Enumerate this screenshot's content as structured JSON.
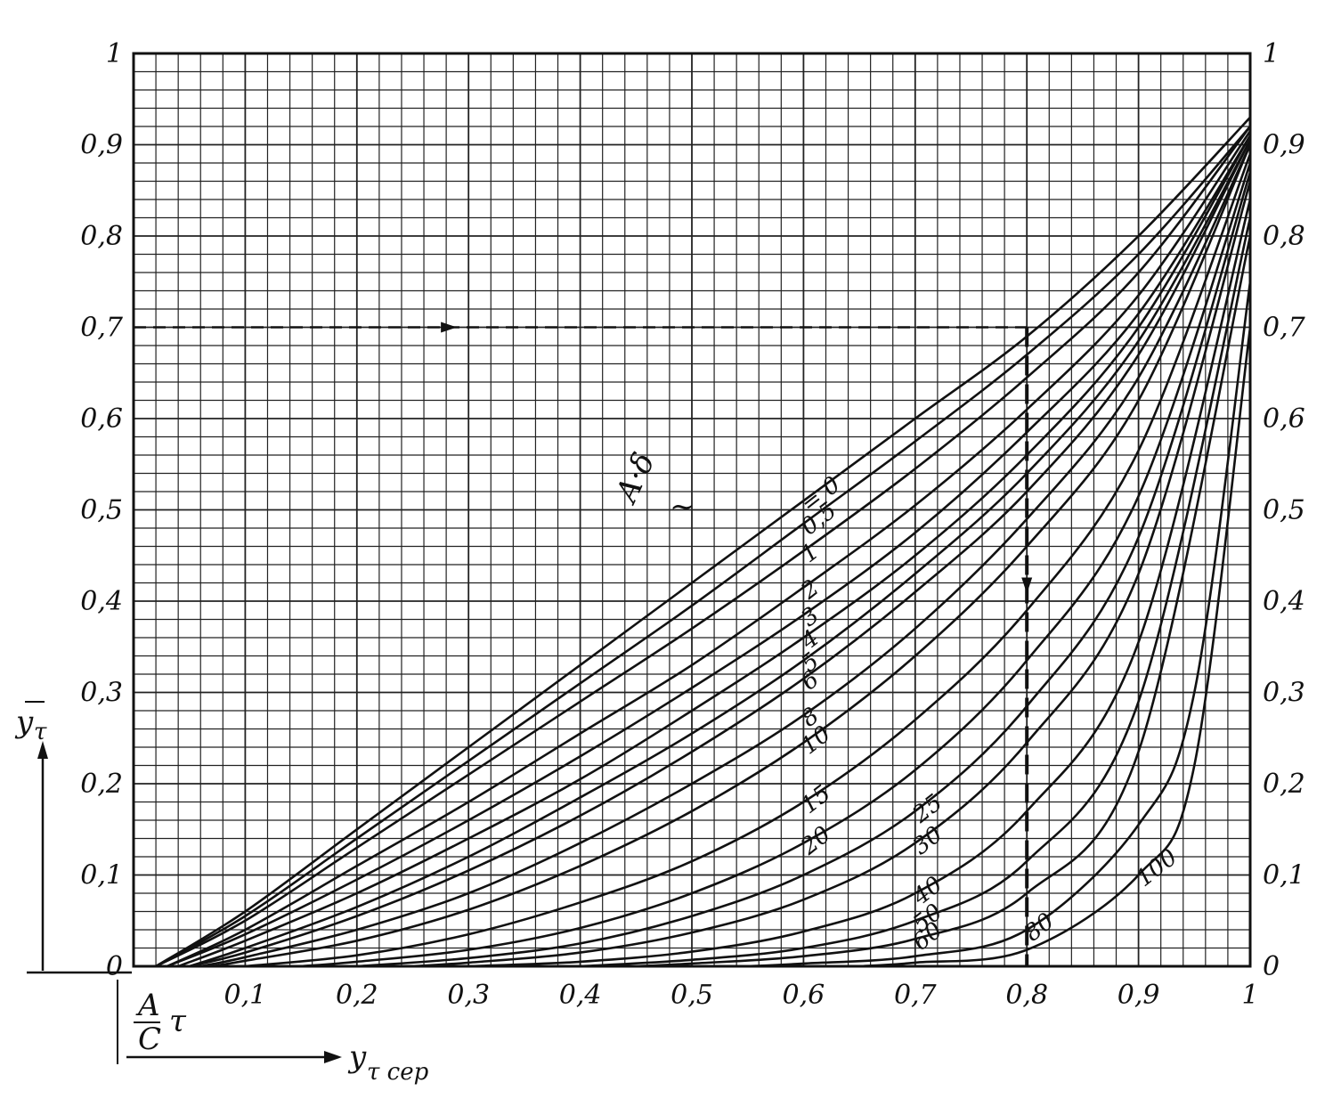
{
  "chart_data": {
    "type": "line",
    "xlim": [
      0,
      1
    ],
    "ylim": [
      0,
      1
    ],
    "grid": true,
    "x_ticks": [
      "0,1",
      "0,2",
      "0,3",
      "0,4",
      "0,5",
      "0,6",
      "0,7",
      "0,8",
      "0,9",
      "1"
    ],
    "y_ticks_left": [
      "0",
      "0,1",
      "0,2",
      "0,3",
      "0,4",
      "0,5",
      "0,6",
      "0,7",
      "0,8",
      "0,9",
      "1"
    ],
    "y_ticks_right": [
      "0",
      "0,1",
      "0,2",
      "0,3",
      "0,4",
      "0,5",
      "0,6",
      "0,7",
      "0,8",
      "0,9",
      "1"
    ],
    "x_label_fraction": {
      "numerator": "A",
      "denominator": "C",
      "variable": "τ"
    },
    "x_label_arrow": "y",
    "x_label_arrow_sub": "τ сер",
    "y_label": "y",
    "y_label_sub": "τ",
    "curve_param": "A·δ",
    "curve_param_sub": "~",
    "series": [
      {
        "label": "= 0",
        "param": 0,
        "points": [
          [
            0.02,
            0
          ],
          [
            0.1,
            0.06
          ],
          [
            0.2,
            0.15
          ],
          [
            0.3,
            0.24
          ],
          [
            0.4,
            0.33
          ],
          [
            0.5,
            0.42
          ],
          [
            0.6,
            0.51
          ],
          [
            0.7,
            0.6
          ],
          [
            0.8,
            0.69
          ],
          [
            0.9,
            0.8
          ],
          [
            1,
            0.93
          ]
        ]
      },
      {
        "label": "0,5",
        "param": 0.5,
        "points": [
          [
            0.02,
            0
          ],
          [
            0.1,
            0.055
          ],
          [
            0.2,
            0.14
          ],
          [
            0.3,
            0.225
          ],
          [
            0.4,
            0.31
          ],
          [
            0.5,
            0.395
          ],
          [
            0.6,
            0.485
          ],
          [
            0.7,
            0.575
          ],
          [
            0.8,
            0.67
          ],
          [
            0.9,
            0.78
          ],
          [
            1,
            0.92
          ]
        ]
      },
      {
        "label": "1",
        "param": 1,
        "points": [
          [
            0.02,
            0
          ],
          [
            0.1,
            0.05
          ],
          [
            0.2,
            0.13
          ],
          [
            0.3,
            0.21
          ],
          [
            0.4,
            0.29
          ],
          [
            0.5,
            0.37
          ],
          [
            0.6,
            0.455
          ],
          [
            0.7,
            0.545
          ],
          [
            0.8,
            0.645
          ],
          [
            0.9,
            0.76
          ],
          [
            1,
            0.92
          ]
        ]
      },
      {
        "label": "2",
        "param": 2,
        "points": [
          [
            0.03,
            0
          ],
          [
            0.1,
            0.04
          ],
          [
            0.2,
            0.11
          ],
          [
            0.3,
            0.18
          ],
          [
            0.4,
            0.255
          ],
          [
            0.5,
            0.33
          ],
          [
            0.6,
            0.415
          ],
          [
            0.7,
            0.505
          ],
          [
            0.8,
            0.61
          ],
          [
            0.9,
            0.735
          ],
          [
            1,
            0.915
          ]
        ]
      },
      {
        "label": "3",
        "param": 3,
        "points": [
          [
            0.03,
            0
          ],
          [
            0.1,
            0.035
          ],
          [
            0.2,
            0.095
          ],
          [
            0.3,
            0.16
          ],
          [
            0.4,
            0.23
          ],
          [
            0.5,
            0.305
          ],
          [
            0.6,
            0.385
          ],
          [
            0.7,
            0.475
          ],
          [
            0.8,
            0.585
          ],
          [
            0.9,
            0.715
          ],
          [
            1,
            0.91
          ]
        ]
      },
      {
        "label": "4",
        "param": 4,
        "points": [
          [
            0.04,
            0
          ],
          [
            0.1,
            0.028
          ],
          [
            0.2,
            0.08
          ],
          [
            0.3,
            0.14
          ],
          [
            0.4,
            0.205
          ],
          [
            0.5,
            0.28
          ],
          [
            0.6,
            0.36
          ],
          [
            0.7,
            0.45
          ],
          [
            0.8,
            0.56
          ],
          [
            0.9,
            0.7
          ],
          [
            1,
            0.91
          ]
        ]
      },
      {
        "label": "5",
        "param": 5,
        "points": [
          [
            0.05,
            0
          ],
          [
            0.1,
            0.02
          ],
          [
            0.2,
            0.065
          ],
          [
            0.3,
            0.12
          ],
          [
            0.4,
            0.185
          ],
          [
            0.5,
            0.255
          ],
          [
            0.6,
            0.335
          ],
          [
            0.7,
            0.43
          ],
          [
            0.8,
            0.54
          ],
          [
            0.9,
            0.685
          ],
          [
            1,
            0.905
          ]
        ]
      },
      {
        "label": "6",
        "param": 6,
        "points": [
          [
            0.05,
            0
          ],
          [
            0.1,
            0.015
          ],
          [
            0.2,
            0.055
          ],
          [
            0.3,
            0.105
          ],
          [
            0.4,
            0.165
          ],
          [
            0.5,
            0.235
          ],
          [
            0.6,
            0.315
          ],
          [
            0.7,
            0.41
          ],
          [
            0.8,
            0.52
          ],
          [
            0.9,
            0.67
          ],
          [
            1,
            0.905
          ]
        ]
      },
      {
        "label": "8",
        "param": 8,
        "points": [
          [
            0.06,
            0
          ],
          [
            0.1,
            0.01
          ],
          [
            0.2,
            0.04
          ],
          [
            0.3,
            0.08
          ],
          [
            0.4,
            0.135
          ],
          [
            0.5,
            0.2
          ],
          [
            0.6,
            0.275
          ],
          [
            0.7,
            0.37
          ],
          [
            0.8,
            0.49
          ],
          [
            0.9,
            0.645
          ],
          [
            1,
            0.9
          ]
        ]
      },
      {
        "label": "10",
        "param": 10,
        "points": [
          [
            0.07,
            0
          ],
          [
            0.1,
            0.006
          ],
          [
            0.2,
            0.028
          ],
          [
            0.3,
            0.062
          ],
          [
            0.4,
            0.11
          ],
          [
            0.5,
            0.17
          ],
          [
            0.6,
            0.245
          ],
          [
            0.7,
            0.34
          ],
          [
            0.8,
            0.46
          ],
          [
            0.9,
            0.62
          ],
          [
            1,
            0.9
          ]
        ]
      },
      {
        "label": "15",
        "param": 15,
        "points": [
          [
            0.1,
            0
          ],
          [
            0.2,
            0.012
          ],
          [
            0.3,
            0.035
          ],
          [
            0.4,
            0.07
          ],
          [
            0.5,
            0.115
          ],
          [
            0.6,
            0.18
          ],
          [
            0.7,
            0.27
          ],
          [
            0.8,
            0.39
          ],
          [
            0.9,
            0.565
          ],
          [
            1,
            0.89
          ]
        ]
      },
      {
        "label": "20",
        "param": 20,
        "points": [
          [
            0.15,
            0
          ],
          [
            0.2,
            0.005
          ],
          [
            0.3,
            0.018
          ],
          [
            0.4,
            0.042
          ],
          [
            0.5,
            0.08
          ],
          [
            0.6,
            0.135
          ],
          [
            0.7,
            0.215
          ],
          [
            0.8,
            0.335
          ],
          [
            0.9,
            0.515
          ],
          [
            1,
            0.88
          ]
        ]
      },
      {
        "label": "25",
        "param": 25,
        "points": [
          [
            0.2,
            0
          ],
          [
            0.3,
            0.009
          ],
          [
            0.4,
            0.025
          ],
          [
            0.5,
            0.055
          ],
          [
            0.6,
            0.1
          ],
          [
            0.7,
            0.17
          ],
          [
            0.8,
            0.285
          ],
          [
            0.9,
            0.47
          ],
          [
            1,
            0.87
          ]
        ]
      },
      {
        "label": "30",
        "param": 30,
        "points": [
          [
            0.25,
            0
          ],
          [
            0.3,
            0.004
          ],
          [
            0.4,
            0.015
          ],
          [
            0.5,
            0.037
          ],
          [
            0.6,
            0.073
          ],
          [
            0.7,
            0.135
          ],
          [
            0.8,
            0.245
          ],
          [
            0.9,
            0.43
          ],
          [
            1,
            0.86
          ]
        ]
      },
      {
        "label": "40",
        "param": 40,
        "points": [
          [
            0.3,
            0
          ],
          [
            0.4,
            0.005
          ],
          [
            0.5,
            0.016
          ],
          [
            0.6,
            0.038
          ],
          [
            0.7,
            0.08
          ],
          [
            0.8,
            0.17
          ],
          [
            0.9,
            0.355
          ],
          [
            1,
            0.84
          ]
        ]
      },
      {
        "label": "50",
        "param": 50,
        "points": [
          [
            0.4,
            0
          ],
          [
            0.5,
            0.007
          ],
          [
            0.6,
            0.02
          ],
          [
            0.7,
            0.05
          ],
          [
            0.8,
            0.115
          ],
          [
            0.9,
            0.29
          ],
          [
            1,
            0.82
          ]
        ]
      },
      {
        "label": "60",
        "param": 60,
        "points": [
          [
            0.45,
            0
          ],
          [
            0.5,
            0.003
          ],
          [
            0.6,
            0.011
          ],
          [
            0.7,
            0.03
          ],
          [
            0.8,
            0.08
          ],
          [
            0.9,
            0.235
          ],
          [
            1,
            0.8
          ]
        ]
      },
      {
        "label": "80",
        "param": 80,
        "points": [
          [
            0.55,
            0
          ],
          [
            0.6,
            0.003
          ],
          [
            0.7,
            0.011
          ],
          [
            0.8,
            0.04
          ],
          [
            0.9,
            0.155
          ],
          [
            0.95,
            0.3
          ],
          [
            1,
            0.75
          ]
        ]
      },
      {
        "label": "100",
        "param": 100,
        "points": [
          [
            0.65,
            0
          ],
          [
            0.7,
            0.004
          ],
          [
            0.8,
            0.018
          ],
          [
            0.9,
            0.1
          ],
          [
            0.95,
            0.22
          ],
          [
            1,
            0.7
          ]
        ]
      }
    ],
    "example_path": {
      "y_start": 0.7,
      "x_at_curve": 0.8,
      "y_end": 0
    },
    "colors": {
      "ink": "#111111",
      "grid": "#222222",
      "paper": "#ffffff"
    }
  }
}
